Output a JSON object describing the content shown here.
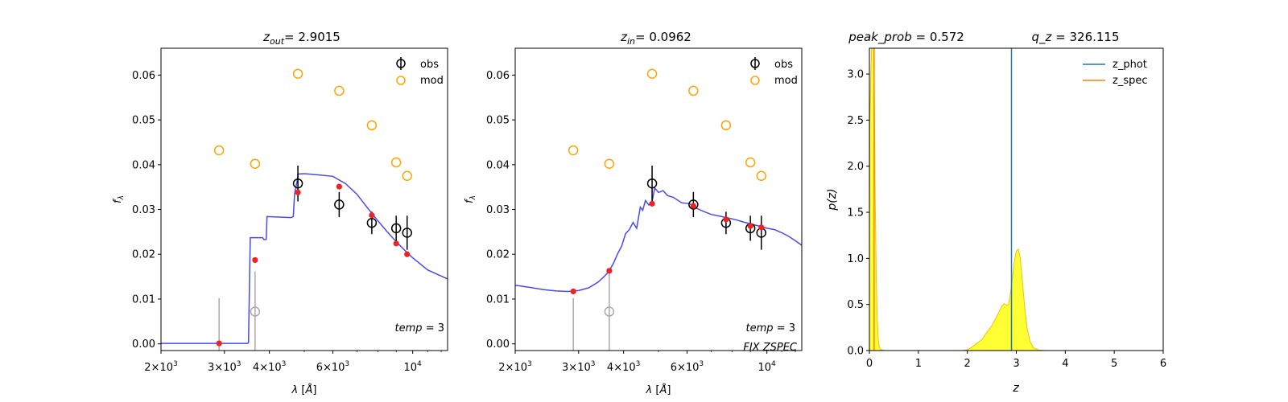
{
  "chart_data": [
    {
      "type": "scatter",
      "title": "z_out = 2.9015",
      "title_parts": {
        "var": "z",
        "sub": "out",
        "value": "= 2.9015"
      },
      "xlabel": "λ [Å]",
      "ylabel": "f_λ",
      "x_scale": "log",
      "xlim": [
        2000,
        12500
      ],
      "ylim": [
        -0.0015,
        0.066
      ],
      "xticks": [
        {
          "v": 2000,
          "base": "2",
          "exp": "3"
        },
        {
          "v": 3000,
          "base": "3",
          "exp": "3"
        },
        {
          "v": 4000,
          "base": "4",
          "exp": "3"
        },
        {
          "v": 6000,
          "base": "6",
          "exp": "3"
        },
        {
          "v": 10000,
          "base": "10",
          "exp": "4"
        }
      ],
      "yticks": [
        {
          "v": 0.0,
          "label": "0.00"
        },
        {
          "v": 0.01,
          "label": "0.01"
        },
        {
          "v": 0.02,
          "label": "0.02"
        },
        {
          "v": 0.03,
          "label": "0.03"
        },
        {
          "v": 0.04,
          "label": "0.04"
        },
        {
          "v": 0.05,
          "label": "0.05"
        },
        {
          "v": 0.06,
          "label": "0.06"
        }
      ],
      "legend": {
        "position": "top-right",
        "entries": [
          "obs",
          "mod"
        ]
      },
      "annotations": [
        "temp = 3"
      ],
      "colors": {
        "obs": "#000000",
        "mod": "#ffa500",
        "model_line": "#3f3ff0",
        "synth": "#ee2222",
        "upper_limit": "#aaaaaa"
      },
      "obs": [
        {
          "x": 4800,
          "y": 0.0358,
          "err": 0.004
        },
        {
          "x": 6250,
          "y": 0.0311,
          "err": 0.0028
        },
        {
          "x": 7700,
          "y": 0.027,
          "err": 0.0025
        },
        {
          "x": 9000,
          "y": 0.0258,
          "err": 0.0028
        },
        {
          "x": 9650,
          "y": 0.0248,
          "err": 0.0038
        }
      ],
      "upper_limits": [
        {
          "x": 2900,
          "y": 0.0,
          "top": 0.0102,
          "marker": false
        },
        {
          "x": 3650,
          "y": 0.0072,
          "top": 0.0162,
          "marker": true
        }
      ],
      "mod": [
        {
          "x": 2900,
          "y": 0.0432
        },
        {
          "x": 3650,
          "y": 0.0402
        },
        {
          "x": 4800,
          "y": 0.0603
        },
        {
          "x": 6250,
          "y": 0.0565
        },
        {
          "x": 7700,
          "y": 0.0488
        },
        {
          "x": 9000,
          "y": 0.0405
        },
        {
          "x": 9650,
          "y": 0.0375
        }
      ],
      "synth": [
        {
          "x": 2900,
          "y": 0.0001
        },
        {
          "x": 3650,
          "y": 0.0187
        },
        {
          "x": 4800,
          "y": 0.0338
        },
        {
          "x": 6250,
          "y": 0.0351
        },
        {
          "x": 7700,
          "y": 0.0287
        },
        {
          "x": 9000,
          "y": 0.0224
        },
        {
          "x": 9650,
          "y": 0.02
        }
      ],
      "model_line": [
        [
          2000,
          0.0001
        ],
        [
          3480,
          0.0001
        ],
        [
          3500,
          0.0003
        ],
        [
          3540,
          0.0237
        ],
        [
          3800,
          0.0237
        ],
        [
          3830,
          0.0237
        ],
        [
          3860,
          0.0233
        ],
        [
          3920,
          0.0233
        ],
        [
          3940,
          0.0284
        ],
        [
          4600,
          0.0282
        ],
        [
          4660,
          0.0284
        ],
        [
          4700,
          0.0335
        ],
        [
          4780,
          0.0365
        ],
        [
          4800,
          0.0379
        ],
        [
          5000,
          0.038
        ],
        [
          5500,
          0.0377
        ],
        [
          6000,
          0.0374
        ],
        [
          6500,
          0.0358
        ],
        [
          7000,
          0.0334
        ],
        [
          7500,
          0.0303
        ],
        [
          8000,
          0.0275
        ],
        [
          8500,
          0.025
        ],
        [
          9000,
          0.0228
        ],
        [
          9500,
          0.0209
        ],
        [
          10000,
          0.0192
        ],
        [
          11000,
          0.0165
        ],
        [
          12500,
          0.0145
        ]
      ]
    },
    {
      "type": "scatter",
      "title": "z_in = 0.0962",
      "title_parts": {
        "var": "z",
        "sub": "in",
        "value": "= 0.0962"
      },
      "xlabel": "λ [Å]",
      "ylabel": "f_λ",
      "x_scale": "log",
      "xlim": [
        2000,
        12500
      ],
      "ylim": [
        -0.0015,
        0.066
      ],
      "xticks": [
        {
          "v": 2000,
          "base": "2",
          "exp": "3"
        },
        {
          "v": 3000,
          "base": "3",
          "exp": "3"
        },
        {
          "v": 4000,
          "base": "4",
          "exp": "3"
        },
        {
          "v": 6000,
          "base": "6",
          "exp": "3"
        },
        {
          "v": 10000,
          "base": "10",
          "exp": "4"
        }
      ],
      "yticks": [
        {
          "v": 0.0,
          "label": "0.00"
        },
        {
          "v": 0.01,
          "label": "0.01"
        },
        {
          "v": 0.02,
          "label": "0.02"
        },
        {
          "v": 0.03,
          "label": "0.03"
        },
        {
          "v": 0.04,
          "label": "0.04"
        },
        {
          "v": 0.05,
          "label": "0.05"
        },
        {
          "v": 0.06,
          "label": "0.06"
        }
      ],
      "legend": {
        "position": "top-right",
        "entries": [
          "obs",
          "mod"
        ]
      },
      "annotations": [
        "temp = 3",
        "FIX ZSPEC"
      ],
      "colors": {
        "obs": "#000000",
        "mod": "#ffa500",
        "model_line": "#3f3ff0",
        "synth": "#ee2222",
        "upper_limit": "#aaaaaa"
      },
      "obs": [
        {
          "x": 4800,
          "y": 0.0358,
          "err": 0.004
        },
        {
          "x": 6250,
          "y": 0.0311,
          "err": 0.0028
        },
        {
          "x": 7700,
          "y": 0.027,
          "err": 0.0025
        },
        {
          "x": 9000,
          "y": 0.0258,
          "err": 0.0028
        },
        {
          "x": 9650,
          "y": 0.0248,
          "err": 0.0038
        }
      ],
      "upper_limits": [
        {
          "x": 2900,
          "y": 0.0117,
          "top": 0.0102,
          "marker": false
        },
        {
          "x": 3650,
          "y": 0.0072,
          "top": 0.0162,
          "marker": true
        }
      ],
      "mod": [
        {
          "x": 2900,
          "y": 0.0432
        },
        {
          "x": 3650,
          "y": 0.0402
        },
        {
          "x": 4800,
          "y": 0.0603
        },
        {
          "x": 6250,
          "y": 0.0565
        },
        {
          "x": 7700,
          "y": 0.0488
        },
        {
          "x": 9000,
          "y": 0.0405
        },
        {
          "x": 9650,
          "y": 0.0375
        }
      ],
      "synth": [
        {
          "x": 2900,
          "y": 0.0117
        },
        {
          "x": 3650,
          "y": 0.0163
        },
        {
          "x": 4800,
          "y": 0.0313
        },
        {
          "x": 6250,
          "y": 0.0308
        },
        {
          "x": 7700,
          "y": 0.0278
        },
        {
          "x": 9000,
          "y": 0.0263
        },
        {
          "x": 9650,
          "y": 0.026
        }
      ],
      "model_line": [
        [
          2000,
          0.0131
        ],
        [
          2200,
          0.0126
        ],
        [
          2400,
          0.0121
        ],
        [
          2600,
          0.0118
        ],
        [
          2800,
          0.0117
        ],
        [
          3000,
          0.0119
        ],
        [
          3200,
          0.0125
        ],
        [
          3400,
          0.0138
        ],
        [
          3550,
          0.0152
        ],
        [
          3650,
          0.0163
        ],
        [
          3750,
          0.018
        ],
        [
          3850,
          0.0201
        ],
        [
          3950,
          0.0218
        ],
        [
          4050,
          0.0246
        ],
        [
          4150,
          0.0255
        ],
        [
          4250,
          0.0271
        ],
        [
          4350,
          0.0258
        ],
        [
          4450,
          0.0305
        ],
        [
          4520,
          0.0298
        ],
        [
          4600,
          0.032
        ],
        [
          4700,
          0.031
        ],
        [
          4800,
          0.0318
        ],
        [
          4880,
          0.0348
        ],
        [
          5000,
          0.0338
        ],
        [
          5150,
          0.0342
        ],
        [
          5300,
          0.0331
        ],
        [
          5500,
          0.0327
        ],
        [
          5800,
          0.0315
        ],
        [
          6100,
          0.0313
        ],
        [
          6400,
          0.0302
        ],
        [
          6700,
          0.0295
        ],
        [
          7000,
          0.0289
        ],
        [
          7400,
          0.0285
        ],
        [
          7800,
          0.0281
        ],
        [
          8200,
          0.0277
        ],
        [
          8600,
          0.0272
        ],
        [
          9000,
          0.0268
        ],
        [
          9500,
          0.0263
        ],
        [
          10000,
          0.0258
        ],
        [
          10500,
          0.0255
        ],
        [
          11000,
          0.0248
        ],
        [
          11500,
          0.024
        ],
        [
          12000,
          0.023
        ],
        [
          12500,
          0.022
        ]
      ]
    },
    {
      "type": "area",
      "title_parts": {
        "left": "peak_prob",
        "left_value": "= 0.572",
        "right": "q_z",
        "right_value": "= 326.115"
      },
      "xlabel": "z",
      "ylabel": "p(z)",
      "xlim": [
        0,
        6
      ],
      "ylim": [
        0,
        3.28
      ],
      "xticks": [
        0,
        1,
        2,
        3,
        4,
        5,
        6
      ],
      "yticks": [
        {
          "v": 0.0,
          "label": "0.0"
        },
        {
          "v": 0.5,
          "label": "0.5"
        },
        {
          "v": 1.0,
          "label": "1.0"
        },
        {
          "v": 1.5,
          "label": "1.5"
        },
        {
          "v": 2.0,
          "label": "2.0"
        },
        {
          "v": 2.5,
          "label": "2.5"
        },
        {
          "v": 3.0,
          "label": "3.0"
        }
      ],
      "legend": {
        "position": "top-right",
        "entries": [
          {
            "label": "z_phot",
            "color": "#1f77b4"
          },
          {
            "label": "z_spec",
            "color": "#ff7f0e"
          }
        ]
      },
      "z_phot": 2.9015,
      "z_spec": 0.0962,
      "fill_color": "#ffff33",
      "edge_color": "#f2c00c",
      "pz_curve": [
        [
          0.0,
          1.3
        ],
        [
          0.01,
          2.5
        ],
        [
          0.03,
          3.0
        ],
        [
          0.05,
          3.4
        ],
        [
          0.07,
          3.6
        ],
        [
          0.09,
          3.3
        ],
        [
          0.1,
          2.8
        ],
        [
          0.12,
          1.6
        ],
        [
          0.14,
          0.8
        ],
        [
          0.16,
          0.35
        ],
        [
          0.18,
          0.12
        ],
        [
          0.2,
          0.04
        ],
        [
          0.23,
          0.01
        ],
        [
          0.3,
          0.0
        ],
        [
          1.9,
          0.0
        ],
        [
          2.0,
          0.01
        ],
        [
          2.1,
          0.04
        ],
        [
          2.2,
          0.08
        ],
        [
          2.3,
          0.12
        ],
        [
          2.4,
          0.2
        ],
        [
          2.5,
          0.27
        ],
        [
          2.6,
          0.37
        ],
        [
          2.7,
          0.48
        ],
        [
          2.75,
          0.51
        ],
        [
          2.8,
          0.49
        ],
        [
          2.84,
          0.5
        ],
        [
          2.88,
          0.62
        ],
        [
          2.92,
          0.78
        ],
        [
          2.96,
          0.97
        ],
        [
          3.0,
          1.08
        ],
        [
          3.04,
          1.1
        ],
        [
          3.08,
          1.0
        ],
        [
          3.12,
          0.78
        ],
        [
          3.17,
          0.48
        ],
        [
          3.22,
          0.24
        ],
        [
          3.28,
          0.1
        ],
        [
          3.35,
          0.03
        ],
        [
          3.45,
          0.005
        ],
        [
          3.6,
          0.0
        ],
        [
          5.0,
          0.0
        ]
      ]
    }
  ]
}
